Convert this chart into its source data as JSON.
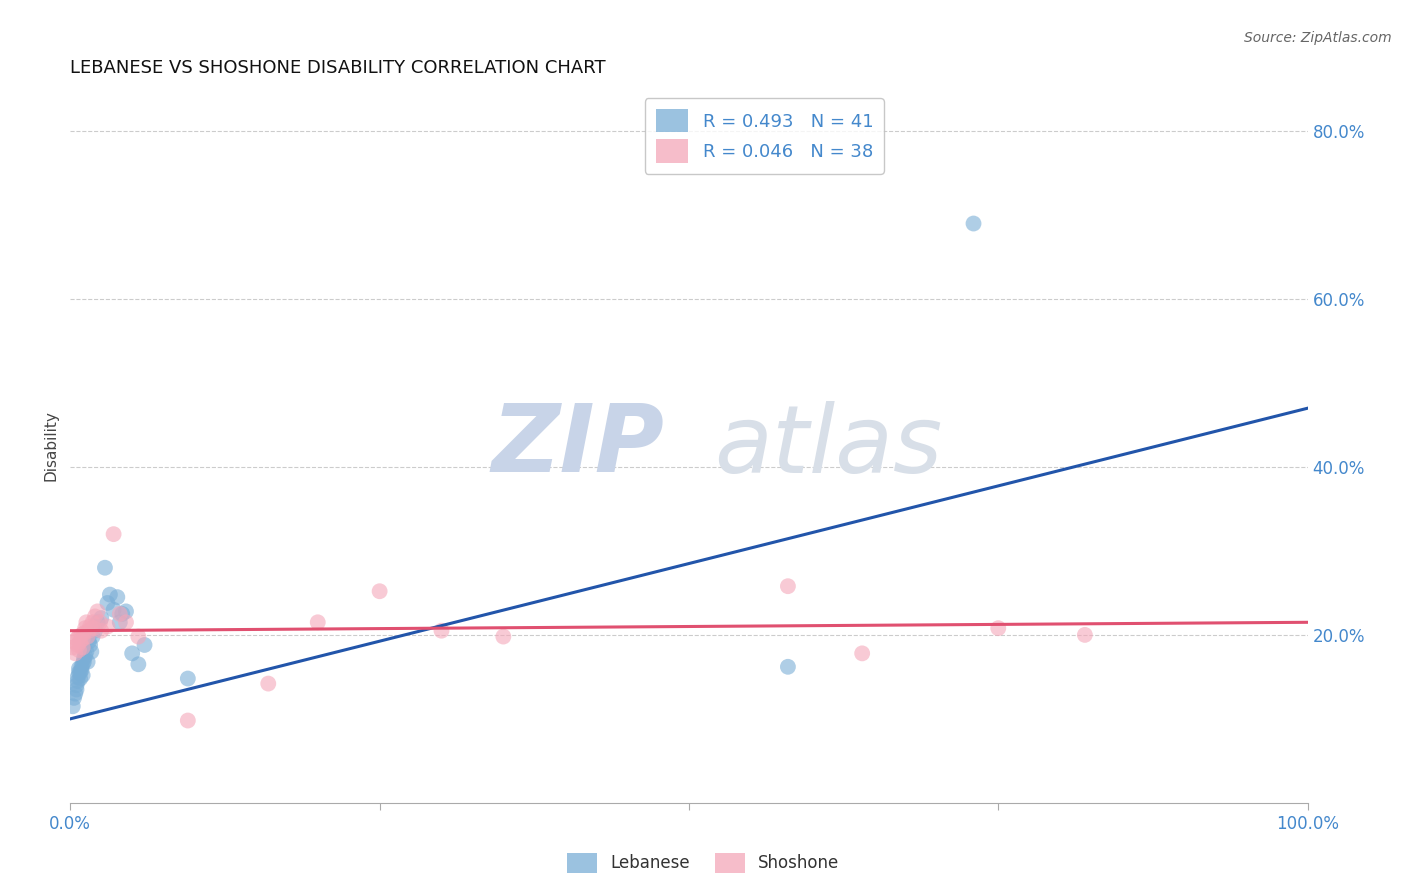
{
  "title": "LEBANESE VS SHOSHONE DISABILITY CORRELATION CHART",
  "source": "Source: ZipAtlas.com",
  "ylabel": "Disability",
  "xlim": [
    0,
    1.0
  ],
  "ylim": [
    0,
    0.85
  ],
  "ytick_positions": [
    0.2,
    0.4,
    0.6,
    0.8
  ],
  "ytick_labels": [
    "20.0%",
    "40.0%",
    "60.0%",
    "80.0%"
  ],
  "R_lebanese": 0.493,
  "N_lebanese": 41,
  "R_shoshone": 0.046,
  "N_shoshone": 38,
  "lebanese_color": "#7aaed6",
  "shoshone_color": "#f4a7b9",
  "lebanese_line_color": "#2255AA",
  "shoshone_line_color": "#e05070",
  "background_color": "#ffffff",
  "grid_color": "#cccccc",
  "title_fontsize": 13,
  "axis_label_color": "#4488CC",
  "watermark_zip": "ZIP",
  "watermark_atlas": "atlas",
  "watermark_color": "#cdd8ea",
  "lebanese_x": [
    0.002,
    0.003,
    0.004,
    0.005,
    0.005,
    0.006,
    0.006,
    0.007,
    0.007,
    0.008,
    0.008,
    0.009,
    0.009,
    0.01,
    0.01,
    0.011,
    0.011,
    0.012,
    0.013,
    0.014,
    0.015,
    0.016,
    0.017,
    0.018,
    0.02,
    0.022,
    0.025,
    0.028,
    0.03,
    0.032,
    0.035,
    0.038,
    0.04,
    0.042,
    0.045,
    0.05,
    0.055,
    0.06,
    0.095,
    0.58,
    0.73
  ],
  "lebanese_y": [
    0.115,
    0.125,
    0.13,
    0.14,
    0.135,
    0.145,
    0.15,
    0.155,
    0.16,
    0.148,
    0.155,
    0.158,
    0.162,
    0.152,
    0.165,
    0.172,
    0.168,
    0.175,
    0.18,
    0.168,
    0.192,
    0.188,
    0.18,
    0.198,
    0.205,
    0.215,
    0.22,
    0.28,
    0.238,
    0.248,
    0.23,
    0.245,
    0.215,
    0.225,
    0.228,
    0.178,
    0.165,
    0.188,
    0.148,
    0.162,
    0.69
  ],
  "shoshone_x": [
    0.002,
    0.003,
    0.004,
    0.005,
    0.006,
    0.007,
    0.007,
    0.008,
    0.009,
    0.01,
    0.01,
    0.011,
    0.012,
    0.013,
    0.014,
    0.015,
    0.016,
    0.018,
    0.019,
    0.02,
    0.022,
    0.024,
    0.025,
    0.03,
    0.035,
    0.04,
    0.045,
    0.055,
    0.095,
    0.16,
    0.2,
    0.25,
    0.3,
    0.35,
    0.58,
    0.64,
    0.75,
    0.82
  ],
  "shoshone_y": [
    0.185,
    0.192,
    0.178,
    0.195,
    0.188,
    0.198,
    0.182,
    0.192,
    0.2,
    0.185,
    0.195,
    0.202,
    0.208,
    0.215,
    0.198,
    0.205,
    0.21,
    0.215,
    0.208,
    0.222,
    0.228,
    0.215,
    0.205,
    0.21,
    0.32,
    0.225,
    0.215,
    0.198,
    0.098,
    0.142,
    0.215,
    0.252,
    0.205,
    0.198,
    0.258,
    0.178,
    0.208,
    0.2
  ]
}
